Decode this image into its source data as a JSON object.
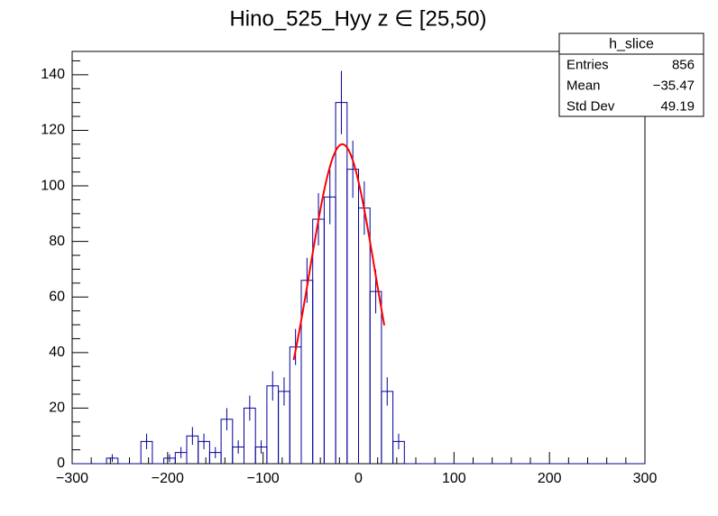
{
  "chart_data": {
    "type": "histogram",
    "title": "Hino_525_Hyy z  ∈ [25,50)",
    "bins": [
      -300,
      -288,
      -276,
      -264,
      -252,
      -240,
      -228,
      -216,
      -204,
      -192,
      -180,
      -168,
      -156,
      -144,
      -132,
      -120,
      -108,
      -96,
      -84,
      -72,
      -60,
      -48,
      -36,
      -24,
      -12,
      0,
      12,
      24,
      36,
      48,
      60,
      72,
      84,
      96,
      108,
      120,
      132,
      144,
      156,
      168,
      180,
      192,
      204,
      216,
      228,
      240,
      252,
      264,
      276,
      288,
      300
    ],
    "values": [
      0,
      0,
      0,
      2,
      0,
      0,
      8,
      0,
      2,
      4,
      10,
      8,
      4,
      16,
      6,
      20,
      6,
      28,
      26,
      42,
      66,
      88,
      96,
      130,
      106,
      92,
      62,
      26,
      8,
      0,
      0,
      0,
      0,
      0,
      0,
      0,
      0,
      0,
      0,
      0,
      0,
      0,
      0,
      0,
      0,
      0,
      0,
      0,
      0,
      0
    ],
    "errors": [
      0,
      0,
      0,
      1.4,
      0,
      0,
      2.8,
      0,
      1.4,
      2,
      3.2,
      2.8,
      2,
      4,
      2.4,
      4.5,
      2.4,
      5.3,
      5.1,
      6.5,
      8.1,
      9.4,
      9.8,
      11.4,
      10.3,
      9.6,
      7.9,
      5.1,
      2.8,
      0,
      0,
      0,
      0,
      0,
      0,
      0,
      0,
      0,
      0,
      0,
      0,
      0,
      0,
      0,
      0,
      0,
      0,
      0,
      0,
      0
    ],
    "color": "#000099",
    "fit": {
      "constant": 115,
      "mean": -17,
      "sigma": 34,
      "xrange": [
        -68,
        27
      ],
      "color": "#ff0000"
    },
    "xlim": [
      -300,
      300
    ],
    "ylim": [
      0,
      148.4
    ],
    "xticks": [
      {
        "value": -300,
        "label": "−300"
      },
      {
        "value": -200,
        "label": "−200"
      },
      {
        "value": -100,
        "label": "−100"
      },
      0,
      100,
      200,
      300
    ],
    "yticks": [
      0,
      20,
      40,
      60,
      80,
      100,
      120,
      140
    ],
    "stats": {
      "title": "h_slice",
      "rows": [
        {
          "label": "Entries",
          "value": "856"
        },
        {
          "label": "Mean",
          "value": "−35.47"
        },
        {
          "label": "Std Dev",
          "value": "49.19"
        }
      ]
    }
  }
}
